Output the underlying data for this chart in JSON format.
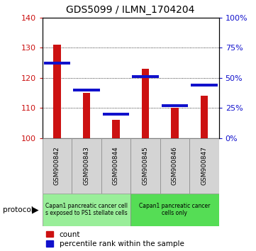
{
  "title": "GDS5099 / ILMN_1704204",
  "samples": [
    "GSM900842",
    "GSM900843",
    "GSM900844",
    "GSM900845",
    "GSM900846",
    "GSM900847"
  ],
  "count_values": [
    131,
    115,
    106,
    123,
    110,
    114
  ],
  "percentile_values": [
    62,
    40,
    20,
    51,
    27,
    44
  ],
  "count_baseline": 100,
  "ylim_left": [
    100,
    140
  ],
  "ylim_right": [
    0,
    100
  ],
  "yticks_left": [
    100,
    110,
    120,
    130,
    140
  ],
  "yticks_right": [
    0,
    25,
    50,
    75,
    100
  ],
  "ytick_labels_right": [
    "0%",
    "25%",
    "50%",
    "75%",
    "100%"
  ],
  "count_color": "#cc1111",
  "percentile_color": "#1111cc",
  "protocol_groups": [
    {
      "label": "Capan1 pancreatic cancer cell\ns exposed to PS1 stellate cells",
      "n": 3,
      "color": "#99ee99"
    },
    {
      "label": "Capan1 pancreatic cancer\ncells only",
      "n": 3,
      "color": "#55dd55"
    }
  ],
  "protocol_label": "protocol",
  "legend_count_label": "count",
  "legend_percentile_label": "percentile rank within the sample",
  "bg_color": "#ffffff",
  "tick_label_color_left": "#cc1111",
  "tick_label_color_right": "#1111cc"
}
